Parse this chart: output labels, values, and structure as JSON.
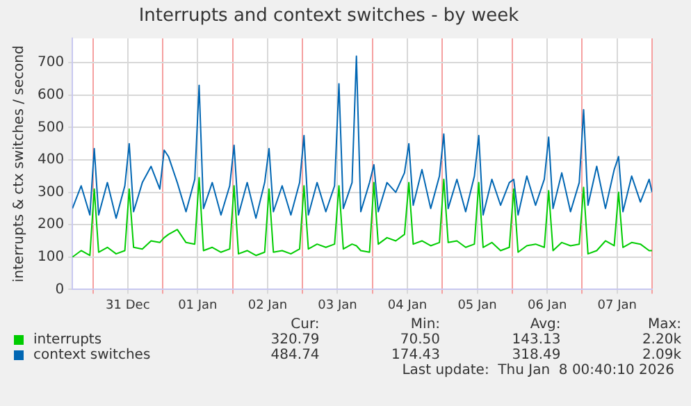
{
  "chart_data": {
    "type": "line",
    "title": "Interrupts and context switches - by week",
    "ylabel": "interrupts & ctx switches / second",
    "x": [
      "2025-12-30T17:00",
      "2025-12-30T20:00",
      "2025-12-30T23:00",
      "2025-12-31T00:30",
      "2025-12-31T02:00",
      "2025-12-31T05:00",
      "2025-12-31T08:00",
      "2025-12-31T11:00",
      "2025-12-31T12:30",
      "2025-12-31T14:00",
      "2025-12-31T17:00",
      "2025-12-31T20:00",
      "2025-12-31T23:00",
      "2026-01-01T00:30",
      "2026-01-01T02:00",
      "2026-01-01T05:00",
      "2026-01-01T08:00",
      "2026-01-01T11:00",
      "2026-01-01T12:30",
      "2026-01-01T14:00",
      "2026-01-01T17:00",
      "2026-01-01T20:00",
      "2026-01-01T23:00",
      "2026-01-02T00:30",
      "2026-01-02T02:00",
      "2026-01-02T05:00",
      "2026-01-02T08:00",
      "2026-01-02T11:00",
      "2026-01-02T12:30",
      "2026-01-02T14:00",
      "2026-01-02T17:00",
      "2026-01-02T20:00",
      "2026-01-02T23:00",
      "2026-01-03T00:30",
      "2026-01-03T02:00",
      "2026-01-03T05:00",
      "2026-01-03T08:00",
      "2026-01-03T11:00",
      "2026-01-03T12:30",
      "2026-01-03T14:00",
      "2026-01-03T17:00",
      "2026-01-03T18:30",
      "2026-01-03T20:00",
      "2026-01-03T23:00",
      "2026-01-04T00:30",
      "2026-01-04T02:00",
      "2026-01-04T05:00",
      "2026-01-04T08:00",
      "2026-01-04T11:00",
      "2026-01-04T12:30",
      "2026-01-04T14:00",
      "2026-01-04T17:00",
      "2026-01-04T20:00",
      "2026-01-04T23:00",
      "2026-01-05T00:30",
      "2026-01-05T02:00",
      "2026-01-05T05:00",
      "2026-01-05T08:00",
      "2026-01-05T11:00",
      "2026-01-05T12:30",
      "2026-01-05T14:00",
      "2026-01-05T17:00",
      "2026-01-05T20:00",
      "2026-01-05T23:00",
      "2026-01-06T00:30",
      "2026-01-06T02:00",
      "2026-01-06T05:00",
      "2026-01-06T08:00",
      "2026-01-06T11:00",
      "2026-01-06T12:30",
      "2026-01-06T14:00",
      "2026-01-06T17:00",
      "2026-01-06T20:00",
      "2026-01-06T23:00",
      "2026-01-07T00:30",
      "2026-01-07T02:00",
      "2026-01-07T05:00",
      "2026-01-07T08:00",
      "2026-01-07T11:00",
      "2026-01-07T12:30",
      "2026-01-07T14:00",
      "2026-01-07T17:00",
      "2026-01-07T20:00",
      "2026-01-07T23:00",
      "2026-01-08T00:00"
    ],
    "series": [
      {
        "name": "interrupts",
        "color": "#00cc00",
        "values": [
          100,
          120,
          105,
          310,
          115,
          130,
          110,
          120,
          310,
          130,
          125,
          150,
          145,
          160,
          170,
          185,
          145,
          140,
          345,
          120,
          130,
          115,
          125,
          320,
          110,
          120,
          105,
          115,
          310,
          115,
          120,
          110,
          125,
          320,
          125,
          140,
          130,
          140,
          320,
          125,
          140,
          135,
          120,
          115,
          330,
          140,
          160,
          150,
          170,
          330,
          140,
          150,
          135,
          145,
          340,
          145,
          150,
          130,
          140,
          330,
          130,
          145,
          120,
          130,
          310,
          115,
          135,
          140,
          130,
          305,
          120,
          145,
          135,
          140,
          315,
          110,
          120,
          150,
          135,
          300,
          130,
          145,
          140,
          120,
          120
        ]
      },
      {
        "name": "context switches",
        "color": "#0066b3",
        "values": [
          250,
          320,
          230,
          435,
          230,
          330,
          220,
          320,
          450,
          240,
          330,
          380,
          310,
          430,
          410,
          330,
          240,
          340,
          630,
          250,
          330,
          230,
          320,
          445,
          230,
          330,
          220,
          330,
          435,
          240,
          320,
          230,
          330,
          475,
          230,
          330,
          240,
          320,
          635,
          250,
          330,
          720,
          240,
          330,
          385,
          240,
          330,
          300,
          360,
          450,
          260,
          370,
          250,
          350,
          480,
          250,
          340,
          240,
          350,
          475,
          230,
          340,
          260,
          330,
          340,
          230,
          350,
          260,
          340,
          470,
          250,
          360,
          240,
          330,
          555,
          260,
          380,
          250,
          370,
          410,
          240,
          350,
          270,
          340,
          300
        ]
      }
    ],
    "xlim": [
      "2025-12-30T17:00",
      "2026-01-08T00:00"
    ],
    "xticks": [
      {
        "value": "2025-12-31T00:00",
        "label": null
      },
      {
        "value": "2025-12-31T12:00",
        "label": "31 Dec"
      },
      {
        "value": "2026-01-01T00:00",
        "label": null
      },
      {
        "value": "2026-01-01T12:00",
        "label": "01 Jan"
      },
      {
        "value": "2026-01-02T00:00",
        "label": null
      },
      {
        "value": "2026-01-02T12:00",
        "label": "02 Jan"
      },
      {
        "value": "2026-01-03T00:00",
        "label": null
      },
      {
        "value": "2026-01-03T12:00",
        "label": "03 Jan"
      },
      {
        "value": "2026-01-04T00:00",
        "label": null
      },
      {
        "value": "2026-01-04T12:00",
        "label": "04 Jan"
      },
      {
        "value": "2026-01-05T00:00",
        "label": null
      },
      {
        "value": "2026-01-05T12:00",
        "label": "05 Jan"
      },
      {
        "value": "2026-01-06T00:00",
        "label": null
      },
      {
        "value": "2026-01-06T12:00",
        "label": "06 Jan"
      },
      {
        "value": "2026-01-07T00:00",
        "label": null
      },
      {
        "value": "2026-01-07T12:00",
        "label": "07 Jan"
      },
      {
        "value": "2026-01-08T00:00",
        "label": null
      }
    ],
    "ylim": [
      0,
      775
    ],
    "yticks": [
      0,
      100,
      200,
      300,
      400,
      500,
      600,
      700
    ],
    "grid": true,
    "legend": "bottom",
    "marker": "none",
    "line_style": "solid",
    "annotations": [
      "Cur:",
      "Min:",
      "Avg:",
      "Max:",
      "320.79",
      "70.50",
      "143.13",
      "2.20k",
      "484.74",
      "174.43",
      "318.49",
      "2.09k",
      "Last update:  Thu Jan  8 00:40:10 2026"
    ]
  }
}
